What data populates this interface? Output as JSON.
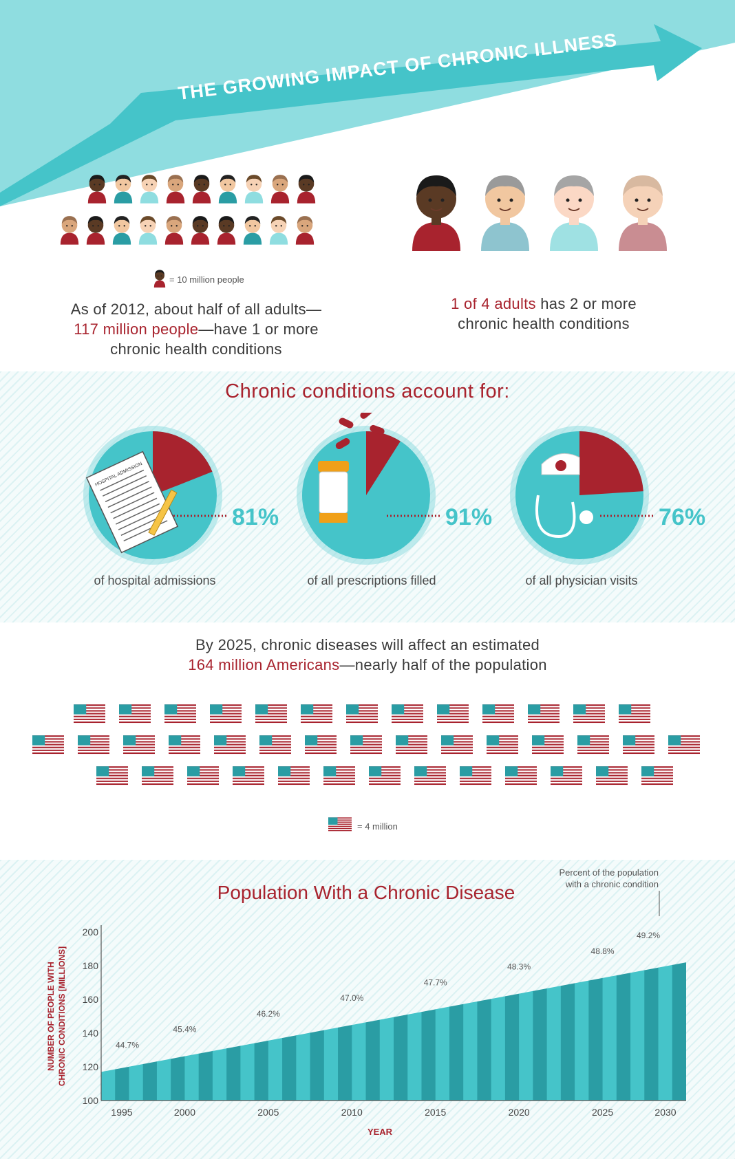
{
  "header": {
    "title": "THE GROWING IMPACT OF CHRONIC ILLNESS"
  },
  "colors": {
    "teal": "#45c4c9",
    "light_teal": "#8fdde0",
    "red": "#a8232e",
    "dark_teal": "#2a9da4"
  },
  "section1": {
    "legend": "= 10 million people",
    "left_text": {
      "line1": "As of 2012, about half of all adults—",
      "highlight": "117 million people",
      "line2_rest": "—have 1 or more",
      "line3": "chronic health conditions"
    },
    "right_text": {
      "highlight": "1 of 4 adults",
      "line1_rest": " has 2 or more",
      "line2": "chronic health conditions"
    }
  },
  "section2": {
    "title": "Chronic conditions account for:",
    "pies": [
      {
        "percent": 81,
        "label": "81%",
        "caption": "of hospital admissions",
        "icon": "hospital-admission-form-icon",
        "form_text": "HOSPITAL ADMISSION"
      },
      {
        "percent": 91,
        "label": "91%",
        "caption": "of all prescriptions filled",
        "icon": "pill-bottle-icon"
      },
      {
        "percent": 76,
        "label": "76%",
        "caption": "of all physician visits",
        "icon": "stethoscope-icon"
      }
    ]
  },
  "section3": {
    "line1": "By 2025, chronic diseases will affect an estimated",
    "highlight": "164 million Americans",
    "line2_rest": "—nearly half of the population",
    "legend": "= 4 million",
    "flag_rows": [
      13,
      15,
      13
    ]
  },
  "chart_data": {
    "type": "area",
    "title": "Population With a Chronic Disease",
    "ylabel_line1": "NUMBER OF PEOPLE WITH",
    "ylabel_line2": "CHRONIC CONDITIONS [MILLIONS]",
    "xlabel": "YEAR",
    "ylim": [
      100,
      200
    ],
    "yticks": [
      100,
      120,
      140,
      160,
      180,
      200
    ],
    "xticks": [
      1995,
      2000,
      2005,
      2010,
      2015,
      2020,
      2025,
      2030
    ],
    "xlim": [
      1995,
      2030
    ],
    "series": [
      {
        "x": [
          1995,
          2030
        ],
        "y": [
          117,
          182
        ]
      }
    ],
    "percent_annotation": "Percent of the population with a chronic condition",
    "percent_labels": [
      {
        "x": 1995,
        "label": "44.7%"
      },
      {
        "x": 2000,
        "label": "45.4%"
      },
      {
        "x": 2005,
        "label": "46.2%"
      },
      {
        "x": 2010,
        "label": "47.0%"
      },
      {
        "x": 2015,
        "label": "47.7%"
      },
      {
        "x": 2020,
        "label": "48.3%"
      },
      {
        "x": 2025,
        "label": "48.8%"
      },
      {
        "x": 2030,
        "label": "49.2%"
      }
    ]
  }
}
